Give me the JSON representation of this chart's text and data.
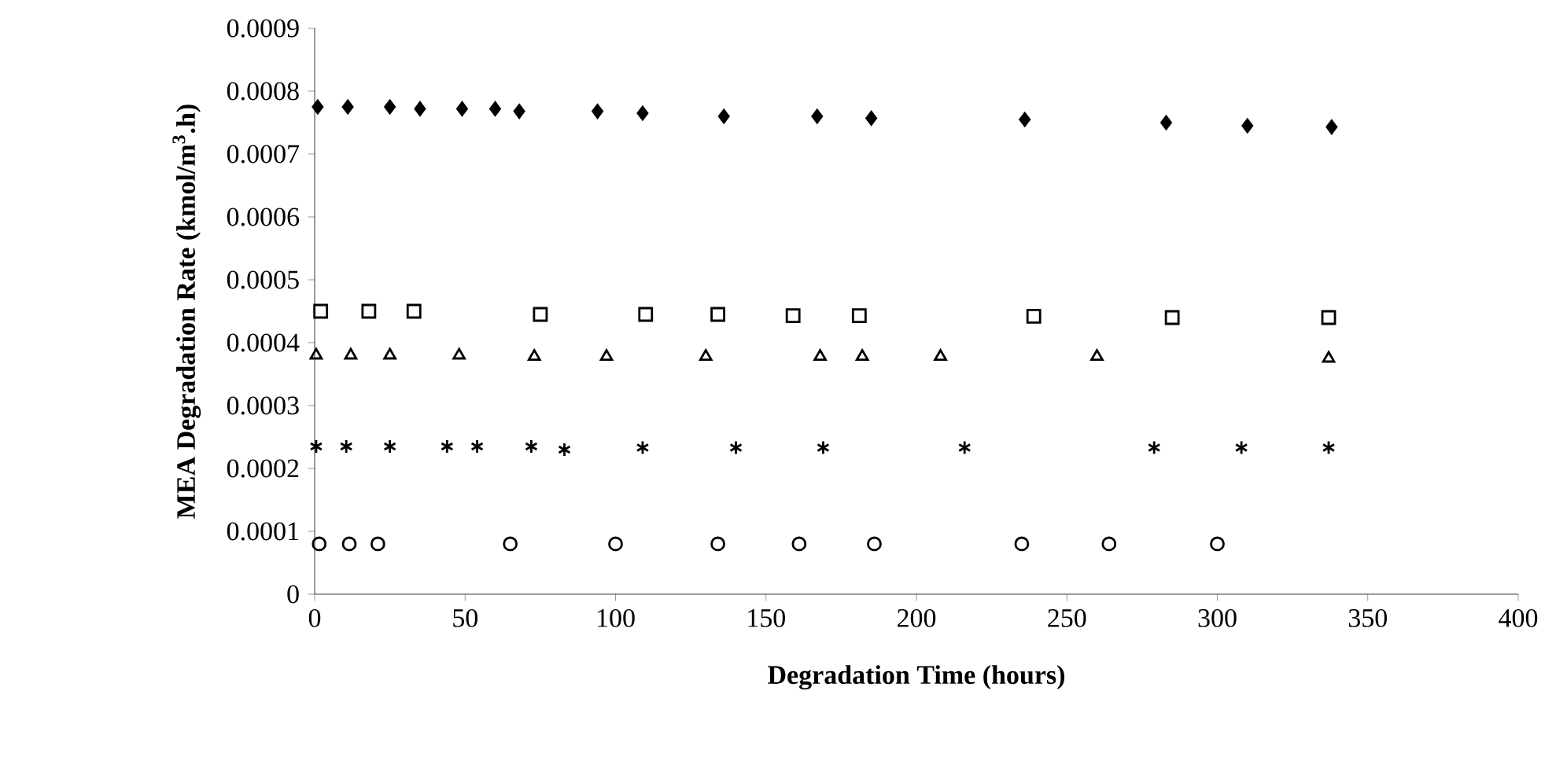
{
  "chart_data": {
    "type": "scatter",
    "xlabel": "Degradation Time (hours)",
    "ylabel": "MEA Degradation Rate (kmol/m$^{3}$.h)",
    "xlim": [
      0,
      400
    ],
    "xticks": [
      0,
      50,
      100,
      150,
      200,
      250,
      300,
      350,
      400
    ],
    "ylim": [
      0,
      0.0009
    ],
    "yticks": [
      {
        "value": 0,
        "label": "0"
      },
      {
        "value": 0.0001,
        "label": "0.0001"
      },
      {
        "value": 0.0002,
        "label": "0.0002"
      },
      {
        "value": 0.0003,
        "label": "0.0003"
      },
      {
        "value": 0.0004,
        "label": "0.0004"
      },
      {
        "value": 0.0005,
        "label": "0.0005"
      },
      {
        "value": 0.0006,
        "label": "0.0006"
      },
      {
        "value": 0.0007,
        "label": "0.0007"
      },
      {
        "value": 0.0008,
        "label": "0.0008"
      },
      {
        "value": 0.0009,
        "label": "0.0009"
      }
    ],
    "series": [
      {
        "color": "#000000",
        "marker": "diamond",
        "x": [
          1,
          11,
          25,
          35,
          49,
          60,
          68,
          94,
          109,
          136,
          167,
          185,
          236,
          283,
          310,
          338
        ],
        "values": [
          0.000775,
          0.000775,
          0.000775,
          0.000772,
          0.000772,
          0.000772,
          0.000768,
          0.000768,
          0.000765,
          0.00076,
          0.00076,
          0.000757,
          0.000755,
          0.00075,
          0.000745,
          0.000743
        ]
      },
      {
        "color": "#000000",
        "marker": "square",
        "x": [
          2,
          18,
          33,
          75,
          110,
          134,
          159,
          181,
          239,
          285,
          337
        ],
        "values": [
          0.00045,
          0.00045,
          0.00045,
          0.000445,
          0.000445,
          0.000445,
          0.000443,
          0.000443,
          0.000442,
          0.00044,
          0.00044
        ]
      },
      {
        "color": "#000000",
        "marker": "triangle",
        "x": [
          0.5,
          12,
          25,
          48,
          73,
          97,
          130,
          168,
          182,
          208,
          260,
          337
        ],
        "values": [
          0.00038,
          0.00038,
          0.00038,
          0.00038,
          0.000378,
          0.000378,
          0.000378,
          0.000378,
          0.000378,
          0.000378,
          0.000378,
          0.000375
        ]
      },
      {
        "color": "#000000",
        "marker": "cross",
        "x": [
          0.5,
          10.5,
          25,
          44,
          54,
          72,
          83,
          109,
          140,
          169,
          216,
          279,
          308,
          337
        ],
        "values": [
          0.000235,
          0.000235,
          0.000235,
          0.000235,
          0.000235,
          0.000235,
          0.00023,
          0.000233,
          0.000233,
          0.000233,
          0.000233,
          0.000233,
          0.000233,
          0.000233
        ]
      },
      {
        "color": "#000000",
        "marker": "circle",
        "x": [
          1.5,
          11.5,
          21,
          65,
          100,
          134,
          161,
          186,
          235,
          264,
          300
        ],
        "values": [
          8e-05,
          8e-05,
          8e-05,
          8e-05,
          8e-05,
          8e-05,
          8e-05,
          8e-05,
          8e-05,
          8e-05,
          8e-05
        ]
      }
    ]
  }
}
